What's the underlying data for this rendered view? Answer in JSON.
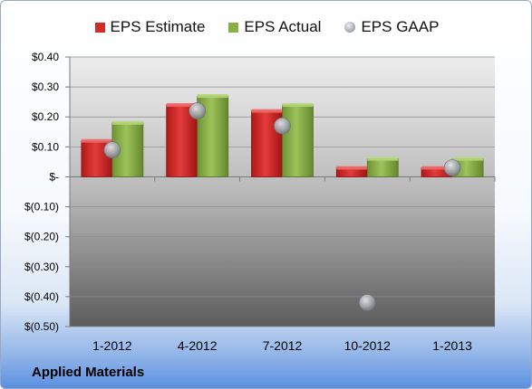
{
  "chart_data": {
    "type": "bar",
    "categories": [
      "1-2012",
      "4-2012",
      "7-2012",
      "10-2012",
      "1-2013"
    ],
    "series": [
      {
        "name": "EPS Estimate",
        "kind": "bar",
        "color": "#d42a2a",
        "values": [
          0.12,
          0.24,
          0.22,
          0.03,
          0.03
        ]
      },
      {
        "name": "EPS Actual",
        "kind": "bar",
        "color": "#8ab04a",
        "values": [
          0.18,
          0.27,
          0.24,
          0.06,
          0.06
        ]
      },
      {
        "name": "EPS GAAP",
        "kind": "point",
        "color": "#a9aeb6",
        "values": [
          0.09,
          0.22,
          0.17,
          -0.42,
          0.03
        ]
      }
    ],
    "y_ticks": [
      {
        "value": 0.4,
        "label": "$0.40"
      },
      {
        "value": 0.3,
        "label": "$0.30"
      },
      {
        "value": 0.2,
        "label": "$0.20"
      },
      {
        "value": 0.1,
        "label": "$0.10"
      },
      {
        "value": 0.0,
        "label": "$-"
      },
      {
        "value": -0.1,
        "label": "$(0.10)"
      },
      {
        "value": -0.2,
        "label": "$(0.20)"
      },
      {
        "value": -0.3,
        "label": "$(0.30)"
      },
      {
        "value": -0.4,
        "label": "$(0.40)"
      },
      {
        "value": -0.5,
        "label": "$(0.50)"
      }
    ],
    "ylim": [
      -0.5,
      0.4
    ],
    "grid": true,
    "legend": "top"
  },
  "footer": {
    "company": "Applied Materials"
  }
}
